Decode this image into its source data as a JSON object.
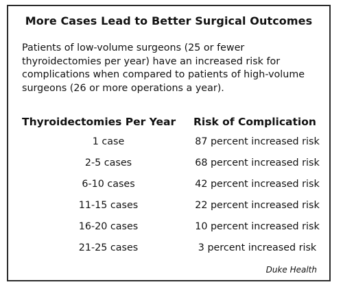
{
  "title": "More Cases Lead to Better Surgical Outcomes",
  "intro_lines": [
    "Patients of low-volume surgeons (25 or fewer",
    "thyroidectomies per year) have an increased risk for",
    "complications when compared to patients of high-volume",
    "surgeons (26 or more operations a year)."
  ],
  "table": {
    "headers": [
      "Thyroidectomies Per Year",
      "Risk of Complication"
    ],
    "rows": [
      [
        "1 case",
        "87 percent increased risk"
      ],
      [
        "2-5 cases",
        "68 percent increased risk"
      ],
      [
        "6-10 cases",
        "42 percent increased risk"
      ],
      [
        "11-15 cases",
        "22 percent increased risk"
      ],
      [
        "16-20 cases",
        "10 percent increased risk"
      ],
      [
        "21-25 cases",
        "3 percent increased risk"
      ]
    ]
  },
  "credit": "Duke Health"
}
